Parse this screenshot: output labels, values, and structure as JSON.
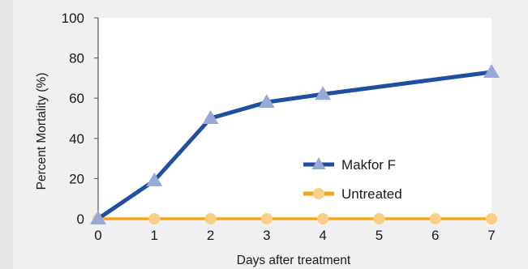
{
  "chart_data": {
    "type": "line",
    "title": "",
    "xlabel": "Days after treatment",
    "ylabel": "Percent Mortality (%)",
    "x": [
      0,
      1,
      2,
      3,
      4,
      5,
      6,
      7
    ],
    "xlim": [
      0,
      7
    ],
    "ylim": [
      0,
      100
    ],
    "x_ticks": [
      "0",
      "1",
      "2",
      "3",
      "4",
      "5",
      "6",
      "7"
    ],
    "y_ticks": [
      "0",
      "20",
      "40",
      "60",
      "80",
      "100"
    ],
    "grid": false,
    "legend_position": "lower-right",
    "series": [
      {
        "name": "Makfor F",
        "color": "#1f4fa0",
        "marker": "triangle",
        "marker_color": "#9aa8d8",
        "points": [
          [
            0,
            0
          ],
          [
            1,
            19
          ],
          [
            2,
            50
          ],
          [
            3,
            58
          ],
          [
            4,
            62
          ],
          [
            7,
            73
          ]
        ]
      },
      {
        "name": "Untreated",
        "color": "#f2a71b",
        "marker": "circle",
        "marker_color": "#f9cf86",
        "points": [
          [
            0,
            0
          ],
          [
            1,
            0
          ],
          [
            2,
            0
          ],
          [
            3,
            0
          ],
          [
            4,
            0
          ],
          [
            5,
            0
          ],
          [
            6,
            0
          ],
          [
            7,
            0
          ]
        ]
      }
    ]
  }
}
